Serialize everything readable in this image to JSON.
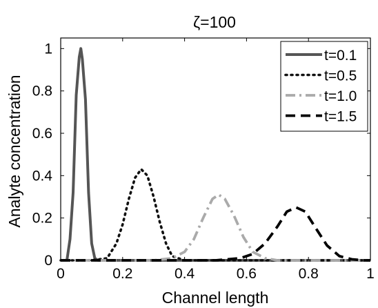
{
  "chart_data": {
    "type": "line",
    "title": "ζ=100",
    "xlabel": "Channel length",
    "ylabel": "Analyte concentration",
    "xlim": [
      0,
      1
    ],
    "ylim": [
      0,
      1.05
    ],
    "xticks": [
      0,
      0.2,
      0.4,
      0.6,
      0.8,
      1
    ],
    "xtick_labels": [
      "0",
      "0.2",
      "0.4",
      "0.6",
      "0.8",
      "1"
    ],
    "yticks": [
      0,
      0.2,
      0.4,
      0.6,
      0.8,
      1
    ],
    "ytick_labels": [
      "0",
      "0.2",
      "0.4",
      "0.6",
      "0.8",
      "1"
    ],
    "grid": false,
    "legend_position": "top-right",
    "series": [
      {
        "name": "t=0.1",
        "color": "#555555",
        "style": "solid",
        "x": [
          0.0,
          0.02,
          0.03,
          0.04,
          0.05,
          0.06,
          0.065,
          0.07,
          0.08,
          0.09,
          0.1,
          0.11,
          0.12,
          0.15,
          0.2,
          0.4,
          0.6,
          0.8,
          1.0
        ],
        "y": [
          0.0,
          0.0,
          0.1,
          0.32,
          0.78,
          0.96,
          1.0,
          0.95,
          0.76,
          0.32,
          0.08,
          0.01,
          0.0,
          0.0,
          0.0,
          0.0,
          0.0,
          0.0,
          0.0
        ]
      },
      {
        "name": "t=0.5",
        "color": "#111111",
        "style": "dotted",
        "x": [
          0.0,
          0.1,
          0.15,
          0.18,
          0.2,
          0.22,
          0.24,
          0.26,
          0.28,
          0.3,
          0.32,
          0.34,
          0.36,
          0.4,
          0.5,
          0.7,
          0.9,
          1.0
        ],
        "y": [
          0.0,
          0.0,
          0.01,
          0.08,
          0.17,
          0.29,
          0.39,
          0.43,
          0.4,
          0.3,
          0.18,
          0.08,
          0.02,
          0.0,
          0.0,
          0.0,
          0.0,
          0.0
        ],
        "points": [
          [
            0.15,
            0.01
          ],
          [
            0.26,
            0.43
          ]
        ]
      },
      {
        "name": "t=1.0",
        "color": "#aaaaaa",
        "style": "dash-dot",
        "x": [
          0.0,
          0.3,
          0.36,
          0.4,
          0.43,
          0.46,
          0.49,
          0.51,
          0.53,
          0.56,
          0.59,
          0.62,
          0.66,
          0.7,
          0.8,
          1.0
        ],
        "y": [
          0.0,
          0.0,
          0.01,
          0.04,
          0.1,
          0.2,
          0.29,
          0.31,
          0.29,
          0.21,
          0.11,
          0.04,
          0.01,
          0.0,
          0.0,
          0.0
        ]
      },
      {
        "name": "t=1.5",
        "color": "#000000",
        "style": "dashed",
        "x": [
          0.0,
          0.5,
          0.58,
          0.62,
          0.66,
          0.7,
          0.73,
          0.76,
          0.79,
          0.82,
          0.86,
          0.9,
          0.94,
          0.98,
          1.0
        ],
        "y": [
          0.0,
          0.0,
          0.01,
          0.03,
          0.08,
          0.16,
          0.23,
          0.25,
          0.23,
          0.16,
          0.07,
          0.02,
          0.005,
          0.0,
          0.0
        ]
      }
    ]
  }
}
